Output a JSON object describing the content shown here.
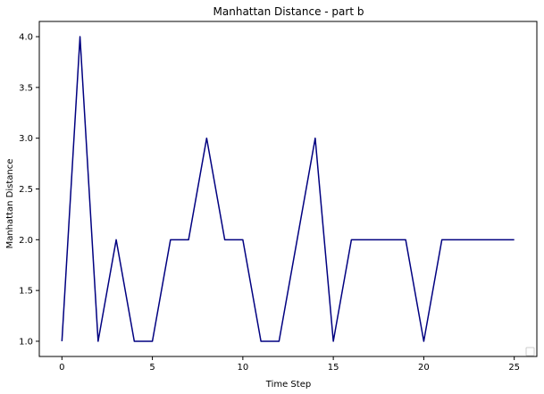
{
  "chart_data": {
    "type": "line",
    "title": "Manhattan Distance - part b",
    "xlabel": "Time Step",
    "ylabel": "Manhattan Distance",
    "xlim": [
      -1.25,
      26.25
    ],
    "ylim": [
      0.85,
      4.15
    ],
    "xticks": [
      0,
      5,
      10,
      15,
      20,
      25
    ],
    "yticks": [
      1.0,
      1.5,
      2.0,
      2.5,
      3.0,
      3.5,
      4.0
    ],
    "xtick_labels": [
      "0",
      "5",
      "10",
      "15",
      "20",
      "25"
    ],
    "ytick_labels": [
      "1.0",
      "1.5",
      "2.0",
      "2.5",
      "3.0",
      "3.5",
      "4.0"
    ],
    "grid": false,
    "legend": "lower-right",
    "series": [
      {
        "color": "#000080",
        "x": [
          0,
          1,
          2,
          3,
          4,
          5,
          6,
          7,
          8,
          9,
          10,
          11,
          12,
          13,
          14,
          15,
          16,
          17,
          18,
          19,
          20,
          21,
          22,
          23,
          24,
          25
        ],
        "y": [
          1,
          4,
          1,
          2,
          1,
          1,
          2,
          2,
          3,
          2,
          2,
          1,
          1,
          2,
          3,
          1,
          2,
          2,
          2,
          2,
          1,
          2,
          2,
          2,
          2,
          2
        ]
      }
    ]
  }
}
